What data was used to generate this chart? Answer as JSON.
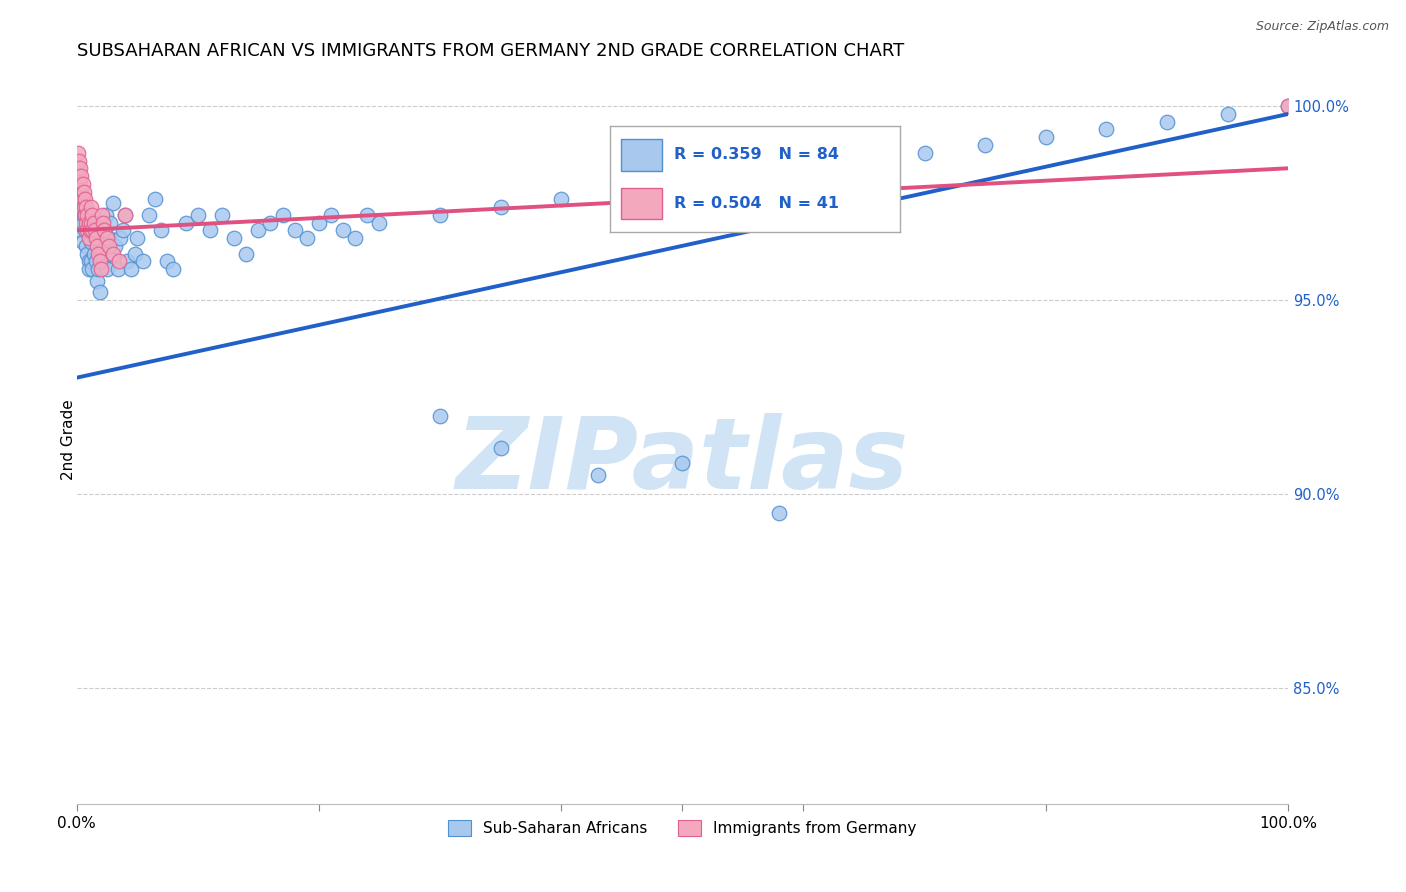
{
  "title": "SUBSAHARAN AFRICAN VS IMMIGRANTS FROM GERMANY 2ND GRADE CORRELATION CHART",
  "source": "Source: ZipAtlas.com",
  "ylabel": "2nd Grade",
  "right_yticks": [
    "100.0%",
    "95.0%",
    "90.0%",
    "85.0%"
  ],
  "right_ytick_vals": [
    1.0,
    0.95,
    0.9,
    0.85
  ],
  "legend_blue_label": "Sub-Saharan Africans",
  "legend_pink_label": "Immigrants from Germany",
  "R_blue": 0.359,
  "N_blue": 84,
  "R_pink": 0.504,
  "N_pink": 41,
  "blue_color": "#A8C8EE",
  "pink_color": "#F4A8BE",
  "blue_edge_color": "#5090D0",
  "pink_edge_color": "#E06090",
  "blue_line_color": "#2060C8",
  "pink_line_color": "#E05080",
  "watermark_color": "#D0E4F5",
  "blue_scatter_x": [
    0.001,
    0.002,
    0.003,
    0.004,
    0.005,
    0.005,
    0.006,
    0.007,
    0.008,
    0.009,
    0.01,
    0.01,
    0.011,
    0.012,
    0.012,
    0.013,
    0.014,
    0.015,
    0.016,
    0.017,
    0.018,
    0.019,
    0.02,
    0.021,
    0.022,
    0.023,
    0.024,
    0.025,
    0.026,
    0.027,
    0.028,
    0.03,
    0.032,
    0.034,
    0.036,
    0.038,
    0.04,
    0.042,
    0.045,
    0.048,
    0.05,
    0.055,
    0.06,
    0.065,
    0.07,
    0.075,
    0.08,
    0.09,
    0.1,
    0.11,
    0.12,
    0.13,
    0.14,
    0.15,
    0.16,
    0.17,
    0.18,
    0.19,
    0.2,
    0.21,
    0.22,
    0.23,
    0.24,
    0.25,
    0.3,
    0.35,
    0.4,
    0.45,
    0.5,
    0.55,
    0.6,
    0.65,
    0.7,
    0.75,
    0.8,
    0.85,
    0.9,
    0.95,
    1.0,
    0.3,
    0.35,
    0.43,
    0.5,
    0.58
  ],
  "blue_scatter_y": [
    0.978,
    0.972,
    0.968,
    0.975,
    0.97,
    0.965,
    0.972,
    0.968,
    0.964,
    0.962,
    0.96,
    0.958,
    0.97,
    0.965,
    0.96,
    0.958,
    0.962,
    0.968,
    0.96,
    0.955,
    0.958,
    0.952,
    0.97,
    0.965,
    0.96,
    0.968,
    0.972,
    0.958,
    0.962,
    0.966,
    0.97,
    0.975,
    0.964,
    0.958,
    0.966,
    0.968,
    0.972,
    0.96,
    0.958,
    0.962,
    0.966,
    0.96,
    0.972,
    0.976,
    0.968,
    0.96,
    0.958,
    0.97,
    0.972,
    0.968,
    0.972,
    0.966,
    0.962,
    0.968,
    0.97,
    0.972,
    0.968,
    0.966,
    0.97,
    0.972,
    0.968,
    0.966,
    0.972,
    0.97,
    0.972,
    0.974,
    0.976,
    0.978,
    0.98,
    0.982,
    0.984,
    0.986,
    0.988,
    0.99,
    0.992,
    0.994,
    0.996,
    0.998,
    1.0,
    0.92,
    0.912,
    0.905,
    0.908,
    0.895
  ],
  "pink_scatter_x": [
    0.001,
    0.001,
    0.002,
    0.002,
    0.003,
    0.003,
    0.004,
    0.004,
    0.005,
    0.005,
    0.006,
    0.006,
    0.007,
    0.007,
    0.008,
    0.008,
    0.009,
    0.009,
    0.01,
    0.01,
    0.011,
    0.012,
    0.012,
    0.013,
    0.013,
    0.014,
    0.015,
    0.016,
    0.017,
    0.018,
    0.019,
    0.02,
    0.021,
    0.022,
    0.023,
    0.025,
    0.027,
    0.03,
    0.035,
    0.04,
    1.0
  ],
  "pink_scatter_y": [
    0.988,
    0.984,
    0.986,
    0.982,
    0.984,
    0.98,
    0.982,
    0.978,
    0.98,
    0.976,
    0.978,
    0.974,
    0.976,
    0.972,
    0.974,
    0.97,
    0.972,
    0.968,
    0.97,
    0.966,
    0.968,
    0.974,
    0.97,
    0.972,
    0.968,
    0.97,
    0.968,
    0.966,
    0.964,
    0.962,
    0.96,
    0.958,
    0.972,
    0.97,
    0.968,
    0.966,
    0.964,
    0.962,
    0.96,
    0.972,
    1.0
  ],
  "blue_line_x": [
    0.0,
    1.0
  ],
  "blue_line_y": [
    0.93,
    0.998
  ],
  "pink_line_x": [
    0.0,
    1.0
  ],
  "pink_line_y": [
    0.968,
    0.984
  ],
  "xlim": [
    0.0,
    1.0
  ],
  "ylim": [
    0.82,
    1.008
  ],
  "scatter_size": 110
}
